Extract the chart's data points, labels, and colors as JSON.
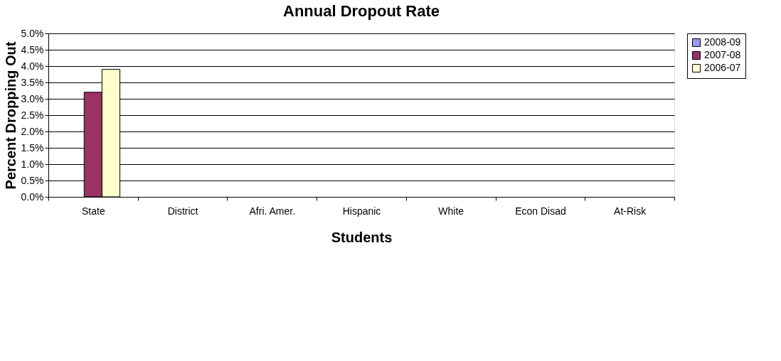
{
  "chart_data": {
    "type": "bar",
    "title": "Annual Dropout Rate",
    "xlabel": "Students",
    "ylabel": "Percent Dropping Out",
    "categories": [
      "State",
      "District",
      "Afri. Amer.",
      "Hispanic",
      "White",
      "Econ Disad",
      "At-Risk"
    ],
    "series": [
      {
        "name": "2008-09",
        "color": "#9999ff",
        "values": [
          null,
          null,
          null,
          null,
          null,
          null,
          null
        ]
      },
      {
        "name": "2007-08",
        "color": "#993366",
        "values": [
          3.2,
          null,
          null,
          null,
          null,
          null,
          null
        ]
      },
      {
        "name": "2006-07",
        "color": "#ffffcc",
        "values": [
          3.9,
          null,
          null,
          null,
          null,
          null,
          null
        ]
      }
    ],
    "ylim": [
      0,
      5
    ],
    "yticks": [
      {
        "value": 0,
        "label": "0.0%"
      },
      {
        "value": 0.5,
        "label": "0.5%"
      },
      {
        "value": 1,
        "label": "1.0%"
      },
      {
        "value": 1.5,
        "label": "1.5%"
      },
      {
        "value": 2,
        "label": "2.0%"
      },
      {
        "value": 2.5,
        "label": "2.5%"
      },
      {
        "value": 3,
        "label": "3.0%"
      },
      {
        "value": 3.5,
        "label": "3.5%"
      },
      {
        "value": 4,
        "label": "4.0%"
      },
      {
        "value": 4.5,
        "label": "4.5%"
      },
      {
        "value": 5,
        "label": "5.0%"
      }
    ],
    "grid": "y",
    "legend": "right"
  }
}
